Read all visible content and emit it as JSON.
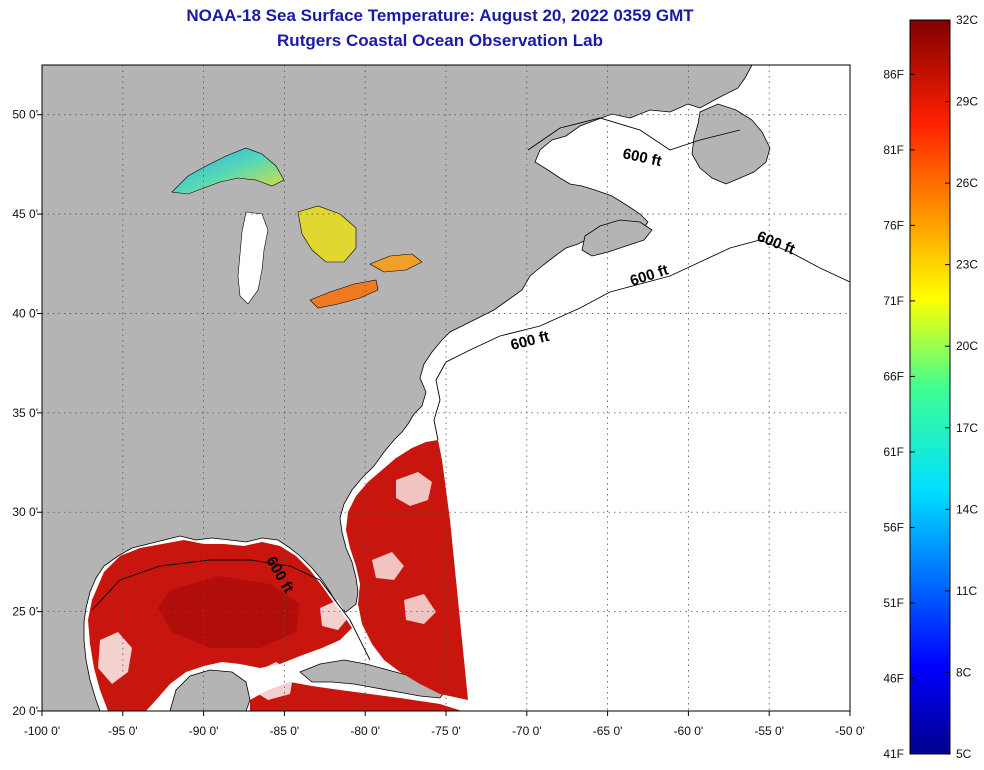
{
  "title": "NOAA-18 Sea Surface Temperature:  August 20, 2022 0359 GMT",
  "subtitle": "Rutgers Coastal Ocean Observation Lab",
  "map": {
    "lon_range": [
      -100,
      -50
    ],
    "lat_range": [
      20,
      52.5
    ],
    "lon_ticks": [
      "-100 0'",
      "-95 0'",
      "-90 0'",
      "-85 0'",
      "-80 0'",
      "-75 0'",
      "-70 0'",
      "-65 0'",
      "-60 0'",
      "-55 0'",
      "-50 0'"
    ],
    "lat_ticks": [
      "50 0'",
      "45 0'",
      "40 0'",
      "35 0'",
      "30 0'",
      "25 0'",
      "20 0'"
    ],
    "contour_labels": [
      "600 ft",
      "600 ft",
      "600 ft",
      "600 ft",
      "600 ft"
    ],
    "colors": {
      "land": "#b4b4b4",
      "ocean": "#ffffff",
      "warm": "#cc1a10",
      "hot": "#a50e0a"
    }
  },
  "colorbar": {
    "celsius_ticks": [
      "32C",
      "29C",
      "26C",
      "23C",
      "20C",
      "17C",
      "14C",
      "11C",
      "8C",
      "5C"
    ],
    "fahrenheit_ticks": [
      "86F",
      "81F",
      "76F",
      "71F",
      "66F",
      "61F",
      "56F",
      "51F",
      "46F",
      "41F"
    ],
    "min_c": 5,
    "max_c": 32
  }
}
